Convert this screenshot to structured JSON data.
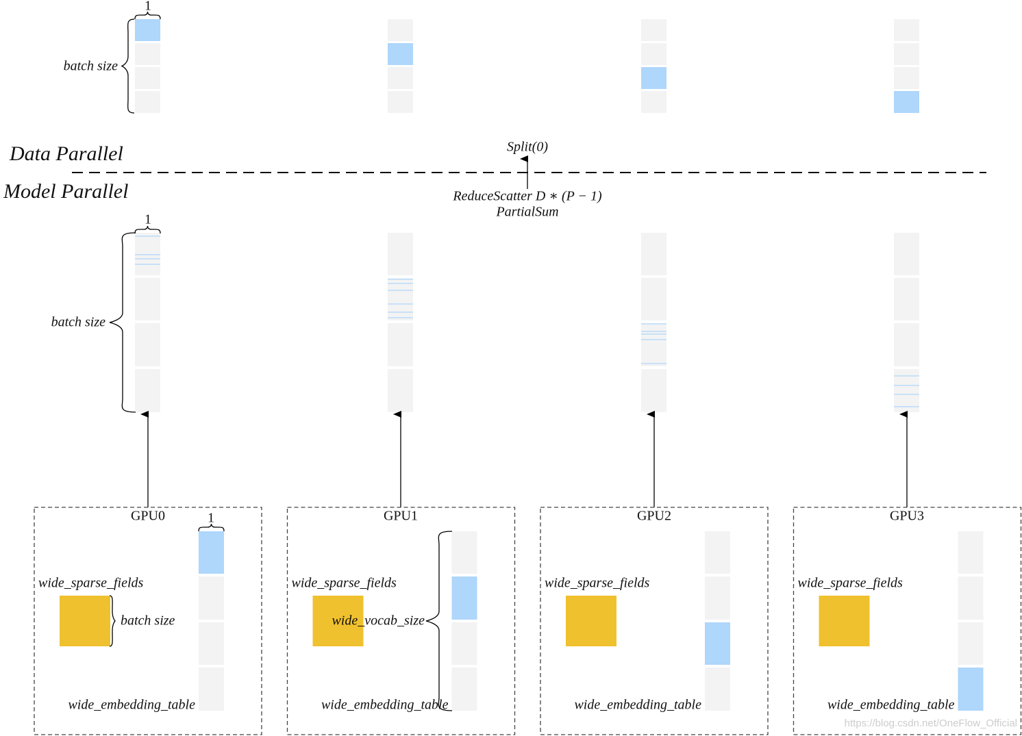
{
  "data_parallel": {
    "label": "Data Parallel",
    "width_label": "1",
    "batch_label": "batch size"
  },
  "model_parallel": {
    "label": "Model Parallel",
    "width_label": "1",
    "batch_label": "batch size"
  },
  "ops": {
    "split": "Split(0)",
    "reduce_scatter": "ReduceScatter D ∗ (P − 1)",
    "partial_sum": "PartialSum"
  },
  "gpus": [
    {
      "name": "GPU0",
      "sparse_fields": "wide_sparse_fields",
      "embedding_table": "wide_embedding_table"
    },
    {
      "name": "GPU1",
      "sparse_fields": "wide_sparse_fields",
      "embedding_table": "wide_embedding_table"
    },
    {
      "name": "GPU2",
      "sparse_fields": "wide_sparse_fields",
      "embedding_table": "wide_embedding_table"
    },
    {
      "name": "GPU3",
      "sparse_fields": "wide_sparse_fields",
      "embedding_table": "wide_embedding_table"
    }
  ],
  "gpu0_annotations": {
    "width_label": "1",
    "batch_label": "batch size"
  },
  "gpu1_annotations": {
    "vocab_label": "wide_vocab_size"
  },
  "watermark": "https://blog.csdn.net/OneFlow_Official"
}
